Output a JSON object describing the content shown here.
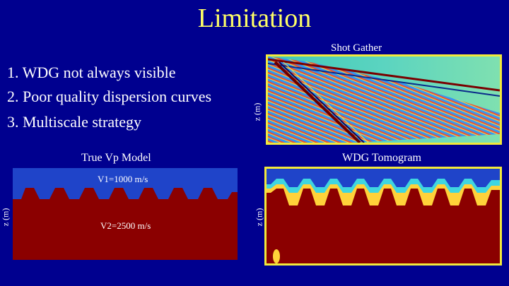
{
  "slide": {
    "title": "Limitation",
    "bullets": [
      "1. WDG not always visible",
      "2. Poor quality dispersion curves",
      "3. Multiscale strategy"
    ]
  },
  "panels": {
    "shot_gather": {
      "title": "Shot Gather",
      "ylabel": "z (m)"
    },
    "true_vp_model": {
      "title": "True Vp Model",
      "ylabel": "z (m)",
      "annotation_top": "V1=1000 m/s",
      "annotation_bottom": "V2=2500 m/s"
    },
    "wdg_tomogram": {
      "title": "WDG Tomogram",
      "ylabel": "z (m)"
    }
  },
  "colors": {
    "background": "#00008f",
    "title": "#ffff66",
    "panel_border": "#f2e93b",
    "model_upper": "#1f44c9",
    "model_lower": "#8b0000"
  }
}
